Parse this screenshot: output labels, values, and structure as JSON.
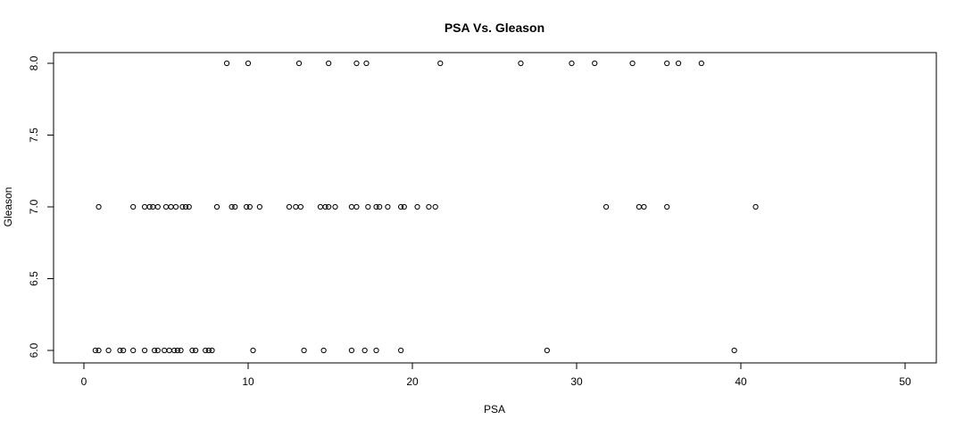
{
  "chart_data": {
    "type": "scatter",
    "title": "PSA Vs. Gleason",
    "xlabel": "PSA",
    "ylabel": "Gleason",
    "xlim": [
      0,
      50
    ],
    "ylim": [
      6.0,
      8.0
    ],
    "x_ticks": [
      0,
      10,
      20,
      30,
      40,
      50
    ],
    "y_ticks": [
      "6.0",
      "6.5",
      "7.0",
      "7.5",
      "8.0"
    ],
    "grid": false,
    "legend": "none",
    "marker": "open-circle",
    "points": [
      {
        "x": 0.7,
        "y": 6
      },
      {
        "x": 0.9,
        "y": 6
      },
      {
        "x": 1.5,
        "y": 6
      },
      {
        "x": 2.2,
        "y": 6
      },
      {
        "x": 2.4,
        "y": 6
      },
      {
        "x": 3.0,
        "y": 6
      },
      {
        "x": 3.7,
        "y": 6
      },
      {
        "x": 4.3,
        "y": 6
      },
      {
        "x": 4.5,
        "y": 6
      },
      {
        "x": 4.9,
        "y": 6
      },
      {
        "x": 5.2,
        "y": 6
      },
      {
        "x": 5.5,
        "y": 6
      },
      {
        "x": 5.7,
        "y": 6
      },
      {
        "x": 5.9,
        "y": 6
      },
      {
        "x": 6.6,
        "y": 6
      },
      {
        "x": 6.8,
        "y": 6
      },
      {
        "x": 7.4,
        "y": 6
      },
      {
        "x": 7.6,
        "y": 6
      },
      {
        "x": 7.8,
        "y": 6
      },
      {
        "x": 10.3,
        "y": 6
      },
      {
        "x": 13.4,
        "y": 6
      },
      {
        "x": 14.6,
        "y": 6
      },
      {
        "x": 16.3,
        "y": 6
      },
      {
        "x": 17.1,
        "y": 6
      },
      {
        "x": 17.8,
        "y": 6
      },
      {
        "x": 19.3,
        "y": 6
      },
      {
        "x": 28.2,
        "y": 6
      },
      {
        "x": 39.6,
        "y": 6
      },
      {
        "x": 0.9,
        "y": 7
      },
      {
        "x": 3.0,
        "y": 7
      },
      {
        "x": 3.7,
        "y": 7
      },
      {
        "x": 4.0,
        "y": 7
      },
      {
        "x": 4.2,
        "y": 7
      },
      {
        "x": 4.5,
        "y": 7
      },
      {
        "x": 5.0,
        "y": 7
      },
      {
        "x": 5.3,
        "y": 7
      },
      {
        "x": 5.6,
        "y": 7
      },
      {
        "x": 6.0,
        "y": 7
      },
      {
        "x": 6.2,
        "y": 7
      },
      {
        "x": 6.4,
        "y": 7
      },
      {
        "x": 8.1,
        "y": 7
      },
      {
        "x": 9.0,
        "y": 7
      },
      {
        "x": 9.2,
        "y": 7
      },
      {
        "x": 9.9,
        "y": 7
      },
      {
        "x": 10.1,
        "y": 7
      },
      {
        "x": 10.7,
        "y": 7
      },
      {
        "x": 12.5,
        "y": 7
      },
      {
        "x": 12.9,
        "y": 7
      },
      {
        "x": 13.2,
        "y": 7
      },
      {
        "x": 14.4,
        "y": 7
      },
      {
        "x": 14.7,
        "y": 7
      },
      {
        "x": 14.9,
        "y": 7
      },
      {
        "x": 15.3,
        "y": 7
      },
      {
        "x": 16.3,
        "y": 7
      },
      {
        "x": 16.6,
        "y": 7
      },
      {
        "x": 17.3,
        "y": 7
      },
      {
        "x": 17.8,
        "y": 7
      },
      {
        "x": 18.0,
        "y": 7
      },
      {
        "x": 18.5,
        "y": 7
      },
      {
        "x": 19.3,
        "y": 7
      },
      {
        "x": 19.5,
        "y": 7
      },
      {
        "x": 20.3,
        "y": 7
      },
      {
        "x": 21.0,
        "y": 7
      },
      {
        "x": 21.4,
        "y": 7
      },
      {
        "x": 31.8,
        "y": 7
      },
      {
        "x": 33.8,
        "y": 7
      },
      {
        "x": 34.1,
        "y": 7
      },
      {
        "x": 35.5,
        "y": 7
      },
      {
        "x": 40.9,
        "y": 7
      },
      {
        "x": 8.7,
        "y": 8
      },
      {
        "x": 10.0,
        "y": 8
      },
      {
        "x": 13.1,
        "y": 8
      },
      {
        "x": 14.9,
        "y": 8
      },
      {
        "x": 16.6,
        "y": 8
      },
      {
        "x": 17.2,
        "y": 8
      },
      {
        "x": 21.7,
        "y": 8
      },
      {
        "x": 26.6,
        "y": 8
      },
      {
        "x": 29.7,
        "y": 8
      },
      {
        "x": 31.1,
        "y": 8
      },
      {
        "x": 33.4,
        "y": 8
      },
      {
        "x": 35.5,
        "y": 8
      },
      {
        "x": 36.2,
        "y": 8
      },
      {
        "x": 37.6,
        "y": 8
      }
    ]
  }
}
